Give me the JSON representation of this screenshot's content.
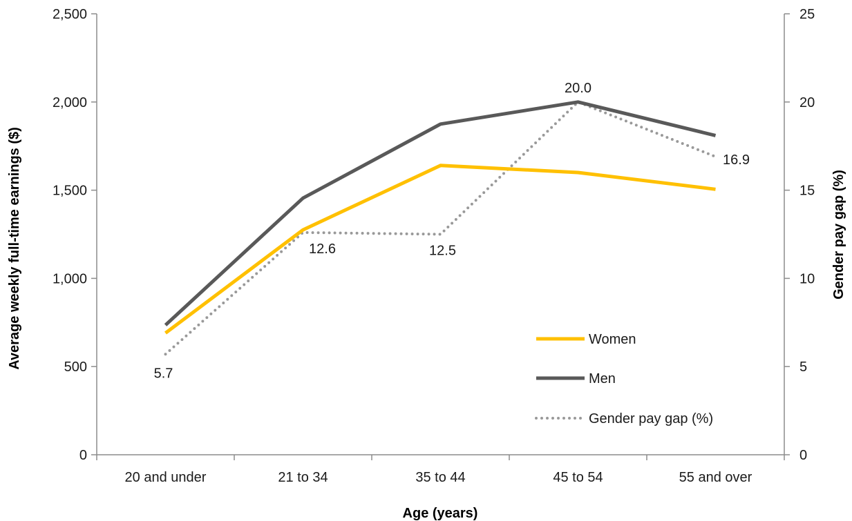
{
  "chart_data": {
    "type": "line",
    "categories": [
      "20 and under",
      "21 to 34",
      "35 to 44",
      "45 to 54",
      "55 and over"
    ],
    "series": [
      {
        "name": "Women",
        "axis": "left",
        "values": [
          690,
          1275,
          1640,
          1600,
          1505
        ],
        "color": "#FFC000",
        "style": "solid"
      },
      {
        "name": "Men",
        "axis": "left",
        "values": [
          735,
          1455,
          1875,
          2000,
          1810
        ],
        "color": "#595959",
        "style": "solid"
      },
      {
        "name": "Gender pay gap (%)",
        "axis": "right",
        "values": [
          5.7,
          12.6,
          12.5,
          20.0,
          16.9
        ],
        "labels": [
          "5.7",
          "12.6",
          "12.5",
          "20.0",
          "16.9"
        ],
        "color": "#999999",
        "style": "dotted"
      }
    ],
    "xlabel": "Age (years)",
    "ylabel": "Average weekly full-time earnings ($)",
    "y2label": "Gender pay gap (%)",
    "ylim": [
      0,
      2500
    ],
    "y2lim": [
      0,
      25
    ],
    "yticks": [
      "0",
      "500",
      "1,000",
      "1,500",
      "2,000",
      "2,500"
    ],
    "y2ticks": [
      "0",
      "5",
      "10",
      "15",
      "20",
      "25"
    ],
    "grid": false,
    "legend_position": "bottom-right"
  }
}
